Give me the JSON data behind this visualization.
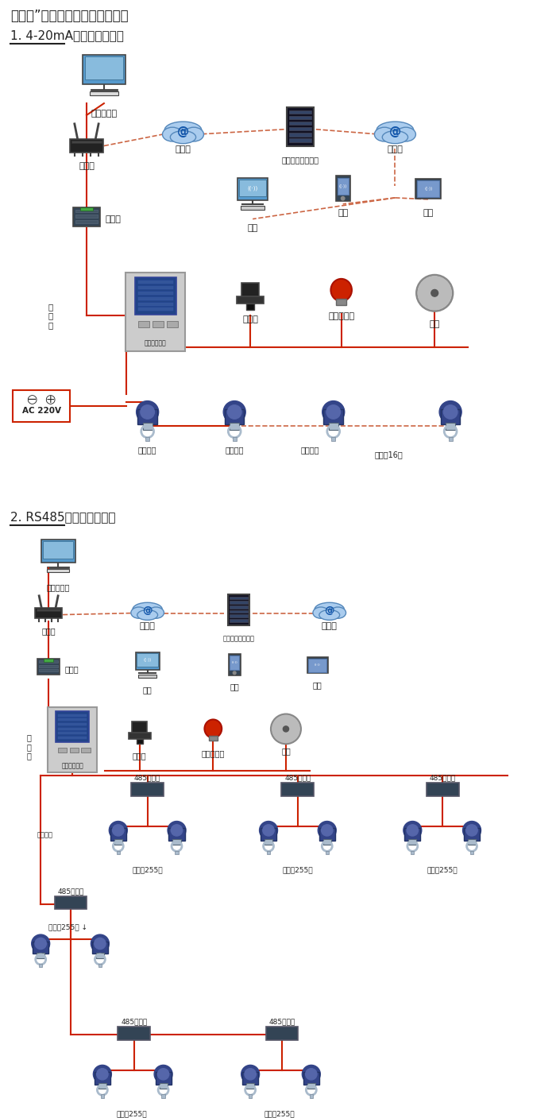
{
  "title1": "机气猫”系列带显示固定式检测仪",
  "subtitle1": "1. 4-20mA信号连接系统图",
  "subtitle2": "2. RS485信号连接系统图",
  "bg_color": "#ffffff",
  "line_color_red": "#cc2200",
  "line_color_dashed": "#cc6644",
  "fig_width": 7.0,
  "fig_height": 14.07,
  "labels": {
    "computer": "单机版电脑",
    "router": "路由器",
    "internet": "互联网",
    "server": "安帕尔网络服务器",
    "converter": "转换器",
    "txline": "通讯线",
    "controller": "报警控制主机",
    "solenoid": "电磁阀",
    "alarm": "声光报警器",
    "fan": "风机",
    "pc": "电脑",
    "phone": "手机",
    "terminal": "终端",
    "ac220": "AC 220V",
    "signal_out": "信号输出",
    "signal_in": "信号输入",
    "connect16": "可连接16个",
    "rs485hub": "485中继器",
    "connect255": "可连接255台"
  }
}
